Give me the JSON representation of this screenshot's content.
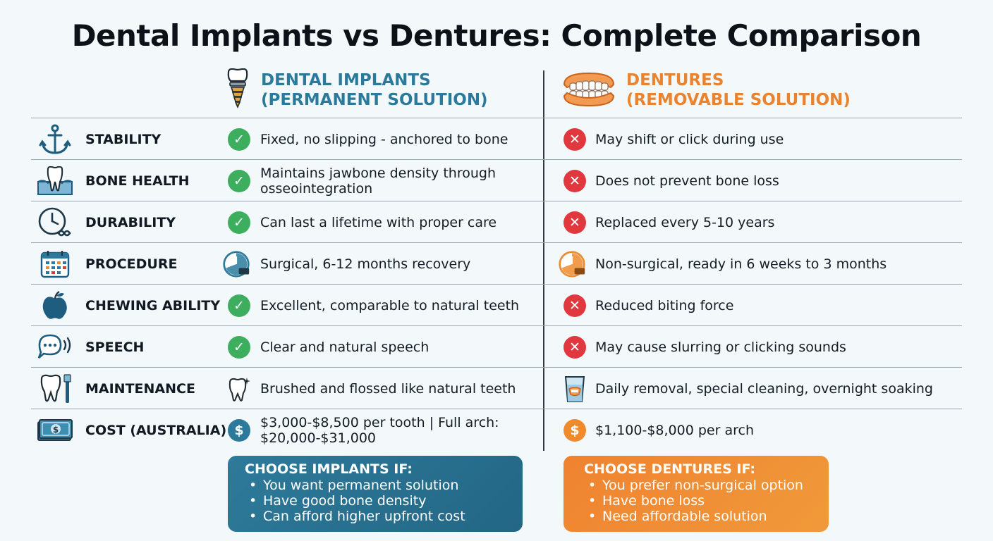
{
  "title": "Dental Implants vs Dentures: Complete Comparison",
  "columns": {
    "implants": {
      "line1": "DENTAL IMPLANTS",
      "line2": "(PERMANENT SOLUTION)",
      "icon": "dental-implant-icon",
      "color": "#2c7a9b"
    },
    "dentures": {
      "line1": "DENTURES",
      "line2": "(REMOVABLE SOLUTION)",
      "icon": "dentures-icon",
      "color": "#e9832f"
    }
  },
  "rows": [
    {
      "label": "STABILITY",
      "icon": "anchor-icon",
      "implants": {
        "text": "Fixed, no slipping - anchored to bone",
        "mark": "check-icon"
      },
      "dentures": {
        "text": "May shift or click during use",
        "mark": "cross-icon"
      }
    },
    {
      "label": "BONE HEALTH",
      "icon": "tooth-bone-icon",
      "implants": {
        "text": "Maintains jawbone density through osseointegration",
        "mark": "check-icon"
      },
      "dentures": {
        "text": "Does not prevent bone loss",
        "mark": "cross-icon"
      }
    },
    {
      "label": "DURABILITY",
      "icon": "clock-infinity-icon",
      "implants": {
        "text": "Can last a lifetime with proper care",
        "mark": "check-icon"
      },
      "dentures": {
        "text": "Replaced every 5-10 years",
        "mark": "cross-icon"
      }
    },
    {
      "label": "PROCEDURE",
      "icon": "calendar-icon",
      "implants": {
        "text": "Surgical, 6-12 months recovery",
        "mark": "timer-icon"
      },
      "dentures": {
        "text": "Non-surgical, ready in 6 weeks to 3 months",
        "mark": "timer-icon"
      }
    },
    {
      "label": "CHEWING ABILITY",
      "icon": "apple-icon",
      "implants": {
        "text": "Excellent, comparable to natural teeth",
        "mark": "check-icon"
      },
      "dentures": {
        "text": "Reduced biting force",
        "mark": "cross-icon"
      }
    },
    {
      "label": "SPEECH",
      "icon": "speech-bubble-icon",
      "implants": {
        "text": "Clear and natural speech",
        "mark": "check-icon"
      },
      "dentures": {
        "text": "May cause slurring or clicking sounds",
        "mark": "cross-icon"
      }
    },
    {
      "label": "MAINTENANCE",
      "icon": "tooth-brush-icon",
      "implants": {
        "text": "Brushed and flossed like natural teeth",
        "mark": "tooth-sparkle-icon"
      },
      "dentures": {
        "text": "Daily removal, special cleaning, overnight soaking",
        "mark": "denture-glass-icon"
      }
    },
    {
      "label": "COST (AUSTRALIA)",
      "icon": "money-icon",
      "implants": {
        "text": "$3,000-$8,500 per tooth | Full arch: $20,000-$31,000",
        "mark": "dollar-icon"
      },
      "dentures": {
        "text": "$1,100-$8,000 per arch",
        "mark": "dollar-icon"
      }
    }
  ],
  "choose": {
    "implants": {
      "heading": "CHOOSE IMPLANTS IF:",
      "items": [
        "You want permanent solution",
        "Have good bone density",
        "Can afford higher upfront cost"
      ]
    },
    "dentures": {
      "heading": "CHOOSE DENTURES IF:",
      "items": [
        "You prefer non-surgical option",
        "Have bone loss",
        "Need affordable solution"
      ]
    }
  }
}
